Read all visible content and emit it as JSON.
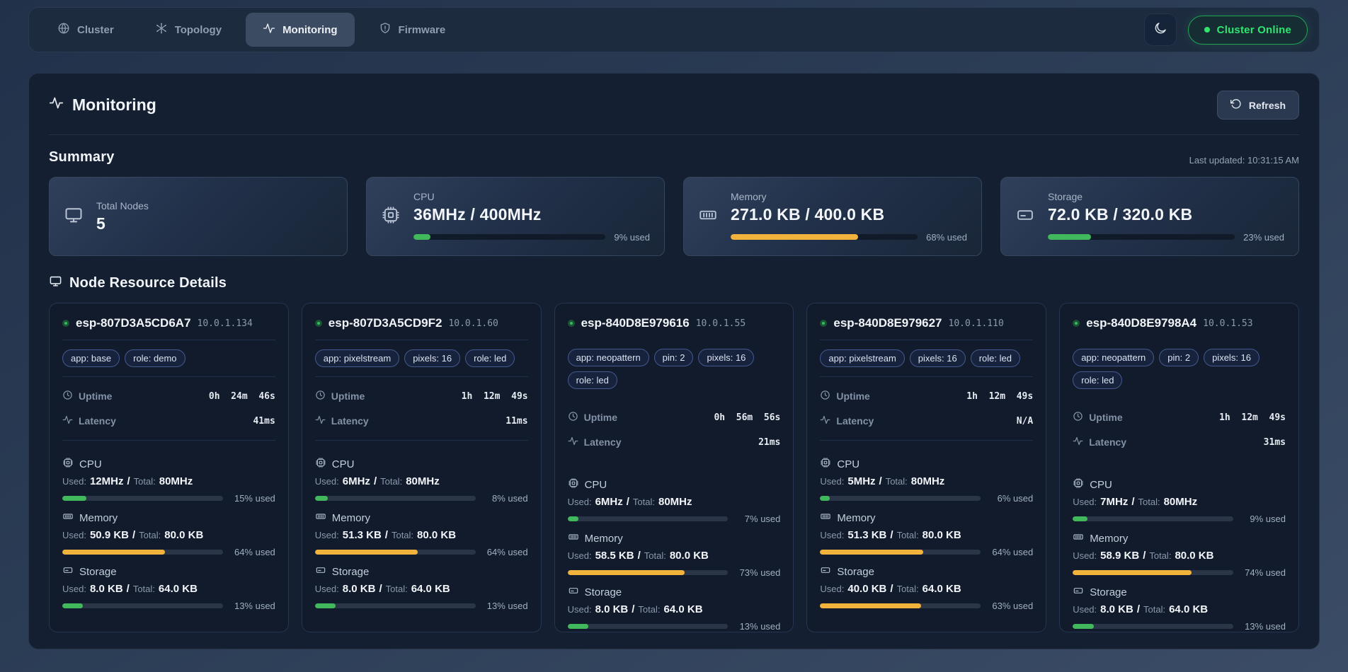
{
  "nav": {
    "tabs": [
      {
        "label": "Cluster",
        "icon": "globe-icon"
      },
      {
        "label": "Topology",
        "icon": "topology-icon"
      },
      {
        "label": "Monitoring",
        "icon": "activity-icon"
      },
      {
        "label": "Firmware",
        "icon": "shield-icon"
      }
    ],
    "cluster_status": "Cluster Online"
  },
  "header": {
    "title": "Monitoring",
    "refresh_label": "Refresh"
  },
  "summary": {
    "heading": "Summary",
    "last_updated": "Last updated: 10:31:15 AM",
    "cards": {
      "nodes": {
        "label": "Total Nodes",
        "value": "5"
      },
      "cpu": {
        "label": "CPU",
        "value": "36MHz / 400MHz",
        "percent": 9,
        "percent_label": "9% used",
        "color": "green"
      },
      "memory": {
        "label": "Memory",
        "value": "271.0 KB / 400.0 KB",
        "percent": 68,
        "percent_label": "68% used",
        "color": "amber"
      },
      "storage": {
        "label": "Storage",
        "value": "72.0 KB / 320.0 KB",
        "percent": 23,
        "percent_label": "23% used",
        "color": "green"
      }
    }
  },
  "nodes_section": {
    "heading": "Node Resource Details"
  },
  "labels": {
    "uptime": "Uptime",
    "latency": "Latency",
    "cpu": "CPU",
    "memory": "Memory",
    "storage": "Storage",
    "used": "Used:",
    "total": "Total:",
    "slash": "/"
  },
  "nodes": [
    {
      "name": "esp-807D3A5CD6A7",
      "ip": "10.0.1.134",
      "tags": [
        "app: base",
        "role: demo"
      ],
      "uptime": "0h  24m  46s",
      "latency": "41ms",
      "cpu": {
        "used": "12MHz",
        "total": "80MHz",
        "percent": 15,
        "percent_label": "15% used",
        "color": "green"
      },
      "memory": {
        "used": "50.9 KB",
        "total": "80.0 KB",
        "percent": 64,
        "percent_label": "64% used",
        "color": "amber"
      },
      "storage": {
        "used": "8.0 KB",
        "total": "64.0 KB",
        "percent": 13,
        "percent_label": "13% used",
        "color": "green"
      }
    },
    {
      "name": "esp-807D3A5CD9F2",
      "ip": "10.0.1.60",
      "tags": [
        "app: pixelstream",
        "pixels: 16",
        "role: led"
      ],
      "uptime": "1h  12m  49s",
      "latency": "11ms",
      "cpu": {
        "used": "6MHz",
        "total": "80MHz",
        "percent": 8,
        "percent_label": "8% used",
        "color": "green"
      },
      "memory": {
        "used": "51.3 KB",
        "total": "80.0 KB",
        "percent": 64,
        "percent_label": "64% used",
        "color": "amber"
      },
      "storage": {
        "used": "8.0 KB",
        "total": "64.0 KB",
        "percent": 13,
        "percent_label": "13% used",
        "color": "green"
      }
    },
    {
      "name": "esp-840D8E979616",
      "ip": "10.0.1.55",
      "tags": [
        "app: neopattern",
        "pin: 2",
        "pixels: 16",
        "role: led"
      ],
      "uptime": "0h  56m  56s",
      "latency": "21ms",
      "cpu": {
        "used": "6MHz",
        "total": "80MHz",
        "percent": 7,
        "percent_label": "7% used",
        "color": "green"
      },
      "memory": {
        "used": "58.5 KB",
        "total": "80.0 KB",
        "percent": 73,
        "percent_label": "73% used",
        "color": "amber"
      },
      "storage": {
        "used": "8.0 KB",
        "total": "64.0 KB",
        "percent": 13,
        "percent_label": "13% used",
        "color": "green"
      }
    },
    {
      "name": "esp-840D8E979627",
      "ip": "10.0.1.110",
      "tags": [
        "app: pixelstream",
        "pixels: 16",
        "role: led"
      ],
      "uptime": "1h  12m  49s",
      "latency": "N/A",
      "cpu": {
        "used": "5MHz",
        "total": "80MHz",
        "percent": 6,
        "percent_label": "6% used",
        "color": "green"
      },
      "memory": {
        "used": "51.3 KB",
        "total": "80.0 KB",
        "percent": 64,
        "percent_label": "64% used",
        "color": "amber"
      },
      "storage": {
        "used": "40.0 KB",
        "total": "64.0 KB",
        "percent": 63,
        "percent_label": "63% used",
        "color": "amber"
      }
    },
    {
      "name": "esp-840D8E9798A4",
      "ip": "10.0.1.53",
      "tags": [
        "app: neopattern",
        "pin: 2",
        "pixels: 16",
        "role: led"
      ],
      "uptime": "1h  12m  49s",
      "latency": "31ms",
      "cpu": {
        "used": "7MHz",
        "total": "80MHz",
        "percent": 9,
        "percent_label": "9% used",
        "color": "green"
      },
      "memory": {
        "used": "58.9 KB",
        "total": "80.0 KB",
        "percent": 74,
        "percent_label": "74% used",
        "color": "amber"
      },
      "storage": {
        "used": "8.0 KB",
        "total": "64.0 KB",
        "percent": 13,
        "percent_label": "13% used",
        "color": "green"
      }
    }
  ]
}
